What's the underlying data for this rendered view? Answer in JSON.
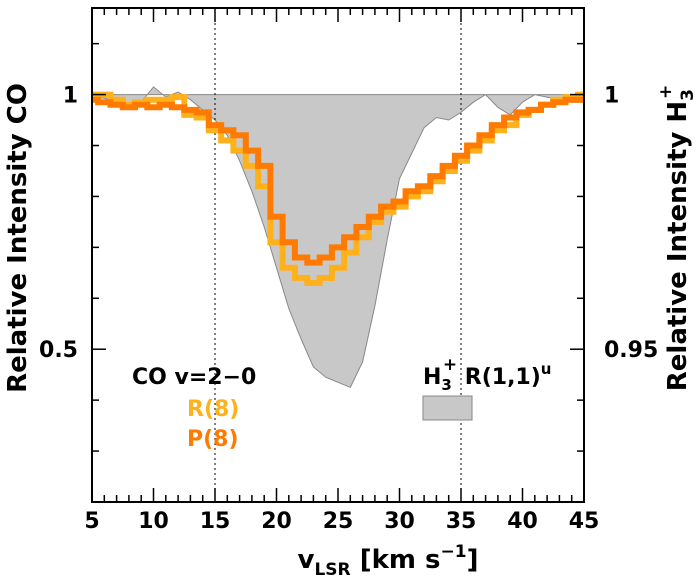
{
  "chart_data": {
    "type": "line",
    "xlabel_main": "v",
    "xlabel_sub": "LSR",
    "xlabel_rest": " [km s",
    "xlabel_sup": "−1",
    "xlabel_close": "]",
    "ylabel_left": "Relative Intensity CO",
    "ylabel_right_main": "Relative Intensity H",
    "ylabel_right_sub": "3",
    "ylabel_right_sup": "+",
    "xlim": [
      5,
      45
    ],
    "ylim_left": [
      0.2,
      1.17
    ],
    "ylim_right": [
      0.92,
      1.017
    ],
    "x_ticks": [
      5,
      10,
      15,
      20,
      25,
      30,
      35,
      40,
      45
    ],
    "x_tick_labels": [
      "5",
      "10",
      "15",
      "20",
      "25",
      "30",
      "35",
      "40",
      "45"
    ],
    "y_left_ticks": [
      0.5,
      1.0
    ],
    "y_left_tick_labels": [
      "0.5",
      "1"
    ],
    "y_right_ticks": [
      0.95,
      1.0
    ],
    "y_right_tick_labels": [
      "0.95",
      "1"
    ],
    "vlines": [
      15,
      35
    ],
    "legend_co_title": "CO v=2−0",
    "legend_h3_main": "H",
    "legend_h3_sub": "3",
    "legend_h3_sup": "+",
    "legend_h3_rest": " R(1,1)",
    "legend_h3_sup2": "u",
    "colors": {
      "R8": "#FFB11B",
      "P8": "#FF7A00",
      "h3": "#c8c8c8",
      "h3_edge": "#888888"
    },
    "series": [
      {
        "name": "R(8)",
        "color": "#FFB11B",
        "x": [
          5,
          6,
          7,
          8,
          9,
          10,
          11,
          12,
          13,
          14,
          15,
          16,
          17,
          18,
          19,
          20,
          21,
          22,
          23,
          24,
          25,
          26,
          27,
          28,
          29,
          30,
          31,
          32,
          33,
          34,
          35,
          36,
          37,
          38,
          39,
          40,
          41,
          42,
          43,
          44,
          45
        ],
        "y": [
          1.0,
          1.0,
          0.99,
          0.98,
          0.985,
          0.99,
          0.99,
          0.995,
          0.96,
          0.955,
          0.93,
          0.91,
          0.89,
          0.86,
          0.82,
          0.71,
          0.66,
          0.64,
          0.63,
          0.64,
          0.66,
          0.69,
          0.72,
          0.75,
          0.77,
          0.78,
          0.8,
          0.81,
          0.83,
          0.85,
          0.87,
          0.89,
          0.91,
          0.93,
          0.94,
          0.96,
          0.97,
          0.98,
          0.99,
          0.995,
          1.0
        ]
      },
      {
        "name": "P(8)",
        "color": "#FF7A00",
        "x": [
          5,
          6,
          7,
          8,
          9,
          10,
          11,
          12,
          13,
          14,
          15,
          16,
          17,
          18,
          19,
          20,
          21,
          22,
          23,
          24,
          25,
          26,
          27,
          28,
          29,
          30,
          31,
          32,
          33,
          34,
          35,
          36,
          37,
          38,
          39,
          40,
          41,
          42,
          43,
          44,
          45
        ],
        "y": [
          0.99,
          0.985,
          0.98,
          0.975,
          0.98,
          0.975,
          0.98,
          0.975,
          0.97,
          0.965,
          0.94,
          0.93,
          0.92,
          0.89,
          0.86,
          0.76,
          0.71,
          0.68,
          0.67,
          0.68,
          0.7,
          0.72,
          0.74,
          0.76,
          0.78,
          0.79,
          0.81,
          0.82,
          0.84,
          0.86,
          0.88,
          0.9,
          0.92,
          0.94,
          0.955,
          0.965,
          0.97,
          0.98,
          0.985,
          0.99,
          0.99
        ]
      },
      {
        "name": "H3+ R(1,1)u",
        "color": "#c8c8c8",
        "x": [
          5,
          6,
          7,
          8,
          9,
          10,
          11,
          12,
          13,
          14,
          15,
          16,
          17,
          18,
          19,
          20,
          21,
          22,
          23,
          24,
          25,
          26,
          27,
          28,
          29,
          30,
          31,
          32,
          33,
          34,
          35,
          36,
          37,
          38,
          39,
          40,
          41,
          42,
          43,
          44,
          45
        ],
        "y": [
          0.9995,
          0.9993,
          0.9985,
          0.9975,
          0.9985,
          1.0015,
          0.9995,
          1.0005,
          0.999,
          0.997,
          0.995,
          0.992,
          0.987,
          0.981,
          0.974,
          0.966,
          0.958,
          0.952,
          0.9465,
          0.9445,
          0.9435,
          0.9425,
          0.9475,
          0.9585,
          0.9715,
          0.9835,
          0.9885,
          0.9935,
          0.9955,
          0.995,
          0.9965,
          0.9985,
          1.0,
          0.9975,
          0.996,
          0.9985,
          1.0,
          0.9995,
          0.999,
          0.9985,
          0.9985
        ]
      }
    ]
  }
}
